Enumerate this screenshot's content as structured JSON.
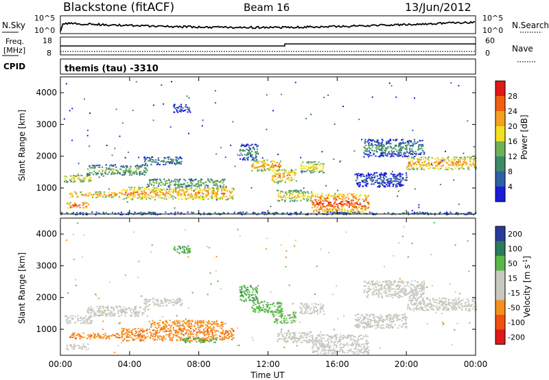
{
  "header": {
    "title": "Blackstone (fitACF)",
    "beam": "Beam 16",
    "date": "13/Jun/2012"
  },
  "noise_panel": {
    "left_label": "N.Sky",
    "right_label": "N.Search",
    "left_ticks": [
      "10^5",
      "10^0"
    ],
    "right_ticks": [
      "10^5",
      "10^0"
    ]
  },
  "freq_panel": {
    "left_label_line1": "Freq.",
    "left_label_line2": "[MHz]",
    "right_label": "Nave",
    "left_ticks": [
      "18",
      "8"
    ],
    "right_ticks": [
      "60",
      "0"
    ]
  },
  "cpid": {
    "label": "CPID",
    "value": "themis (tau) -3310"
  },
  "axes": {
    "ylabel": "Slant Range [km]",
    "xlabel": "Time UT",
    "y_ticks": [
      "1000",
      "2000",
      "3000",
      "4000"
    ],
    "x_ticks": [
      "00:00",
      "04:00",
      "08:00",
      "12:00",
      "16:00",
      "20:00",
      "00:00"
    ]
  },
  "colors": {
    "power": [
      "#1b1bdc",
      "#2f5fa6",
      "#3f8a68",
      "#6fb05a",
      "#f0e020",
      "#f4a020",
      "#f06010",
      "#e01818"
    ],
    "velocity": [
      "#e01818",
      "#f05010",
      "#f49020",
      "#c8c8c0",
      "#c8c8c0",
      "#5ab84a",
      "#2e7a5a",
      "#2a3a9a"
    ]
  },
  "chart_data": [
    {
      "type": "heatmap",
      "title": "Power",
      "colorbar_label": "Power [dB]",
      "colorbar_ticks": [
        "4",
        "8",
        "12",
        "16",
        "20",
        "24",
        "28"
      ],
      "colorbar_range": [
        0,
        32
      ],
      "xlim": [
        0,
        24
      ],
      "ylim": [
        180,
        4500
      ],
      "features": [
        {
          "t0": 0.2,
          "t1": 1.8,
          "r0": 1200,
          "r1": 1450,
          "p": 20
        },
        {
          "t0": 1.5,
          "t1": 5.0,
          "r0": 1420,
          "r1": 1750,
          "p": 16
        },
        {
          "t0": 4.8,
          "t1": 7.0,
          "r0": 1750,
          "r1": 2000,
          "p": 12
        },
        {
          "t0": 0.5,
          "t1": 3.5,
          "r0": 720,
          "r1": 900,
          "p": 24
        },
        {
          "t0": 3.5,
          "t1": 10.0,
          "r0": 650,
          "r1": 1050,
          "p": 24
        },
        {
          "t0": 5.0,
          "t1": 9.5,
          "r0": 1050,
          "r1": 1300,
          "p": 16
        },
        {
          "t0": 0.3,
          "t1": 1.6,
          "r0": 380,
          "r1": 560,
          "p": 28
        },
        {
          "t0": 10.3,
          "t1": 11.4,
          "r0": 1900,
          "r1": 2400,
          "p": 12
        },
        {
          "t0": 11.0,
          "t1": 12.8,
          "r0": 1550,
          "r1": 1900,
          "p": 24
        },
        {
          "t0": 12.2,
          "t1": 13.6,
          "r0": 1200,
          "r1": 1600,
          "p": 24
        },
        {
          "t0": 13.8,
          "t1": 15.2,
          "r0": 1500,
          "r1": 1850,
          "p": 20
        },
        {
          "t0": 12.5,
          "t1": 14.5,
          "r0": 600,
          "r1": 950,
          "p": 20
        },
        {
          "t0": 14.5,
          "t1": 17.8,
          "r0": 250,
          "r1": 850,
          "p": 28
        },
        {
          "t0": 17.5,
          "t1": 21.0,
          "r0": 2000,
          "r1": 2550,
          "p": 12
        },
        {
          "t0": 20.0,
          "t1": 24.0,
          "r0": 1600,
          "r1": 2000,
          "p": 24
        },
        {
          "t0": 17.0,
          "t1": 20.0,
          "r0": 1050,
          "r1": 1500,
          "p": 8
        },
        {
          "t0": 6.5,
          "t1": 7.5,
          "r0": 3400,
          "r1": 3650,
          "p": 8
        },
        {
          "t0": 0.0,
          "t1": 24.0,
          "r0": 180,
          "r1": 260,
          "p": 12
        }
      ]
    },
    {
      "type": "heatmap",
      "title": "Velocity",
      "colorbar_label": "Velocity [m s^-1]",
      "colorbar_ticks": [
        "-200",
        "-100",
        "-50",
        "-15",
        "15",
        "50",
        "100",
        "200"
      ],
      "colorbar_range": [
        -250,
        250
      ],
      "xlim": [
        0,
        24
      ],
      "ylim": [
        180,
        4500
      ],
      "features": [
        {
          "t0": 0.2,
          "t1": 1.8,
          "r0": 1200,
          "r1": 1450,
          "v": 0
        },
        {
          "t0": 1.5,
          "t1": 5.0,
          "r0": 1420,
          "r1": 1750,
          "v": 0
        },
        {
          "t0": 4.8,
          "t1": 7.0,
          "r0": 1750,
          "r1": 2000,
          "v": 0
        },
        {
          "t0": 0.5,
          "t1": 3.5,
          "r0": 720,
          "r1": 900,
          "v": -40
        },
        {
          "t0": 3.5,
          "t1": 10.0,
          "r0": 650,
          "r1": 1050,
          "v": -40
        },
        {
          "t0": 5.0,
          "t1": 9.5,
          "r0": 1050,
          "r1": 1300,
          "v": -30
        },
        {
          "t0": 0.3,
          "t1": 1.6,
          "r0": 380,
          "r1": 560,
          "v": 0
        },
        {
          "t0": 10.3,
          "t1": 11.4,
          "r0": 1900,
          "r1": 2400,
          "v": 40
        },
        {
          "t0": 11.0,
          "t1": 12.8,
          "r0": 1550,
          "r1": 1900,
          "v": 30
        },
        {
          "t0": 12.2,
          "t1": 13.6,
          "r0": 1200,
          "r1": 1600,
          "v": 20
        },
        {
          "t0": 13.8,
          "t1": 15.2,
          "r0": 1500,
          "r1": 1850,
          "v": 0
        },
        {
          "t0": 12.5,
          "t1": 14.5,
          "r0": 600,
          "r1": 950,
          "v": 0
        },
        {
          "t0": 14.5,
          "t1": 17.8,
          "r0": 250,
          "r1": 850,
          "v": 0
        },
        {
          "t0": 17.5,
          "t1": 21.0,
          "r0": 2000,
          "r1": 2550,
          "v": 0
        },
        {
          "t0": 20.0,
          "t1": 24.0,
          "r0": 1600,
          "r1": 2000,
          "v": 0
        },
        {
          "t0": 17.0,
          "t1": 20.0,
          "r0": 1050,
          "r1": 1500,
          "v": 0
        },
        {
          "t0": 6.5,
          "t1": 7.5,
          "r0": 3400,
          "r1": 3650,
          "v": 40
        },
        {
          "t0": 7.0,
          "t1": 9.0,
          "r0": 600,
          "r1": 750,
          "v": 40
        }
      ]
    }
  ]
}
